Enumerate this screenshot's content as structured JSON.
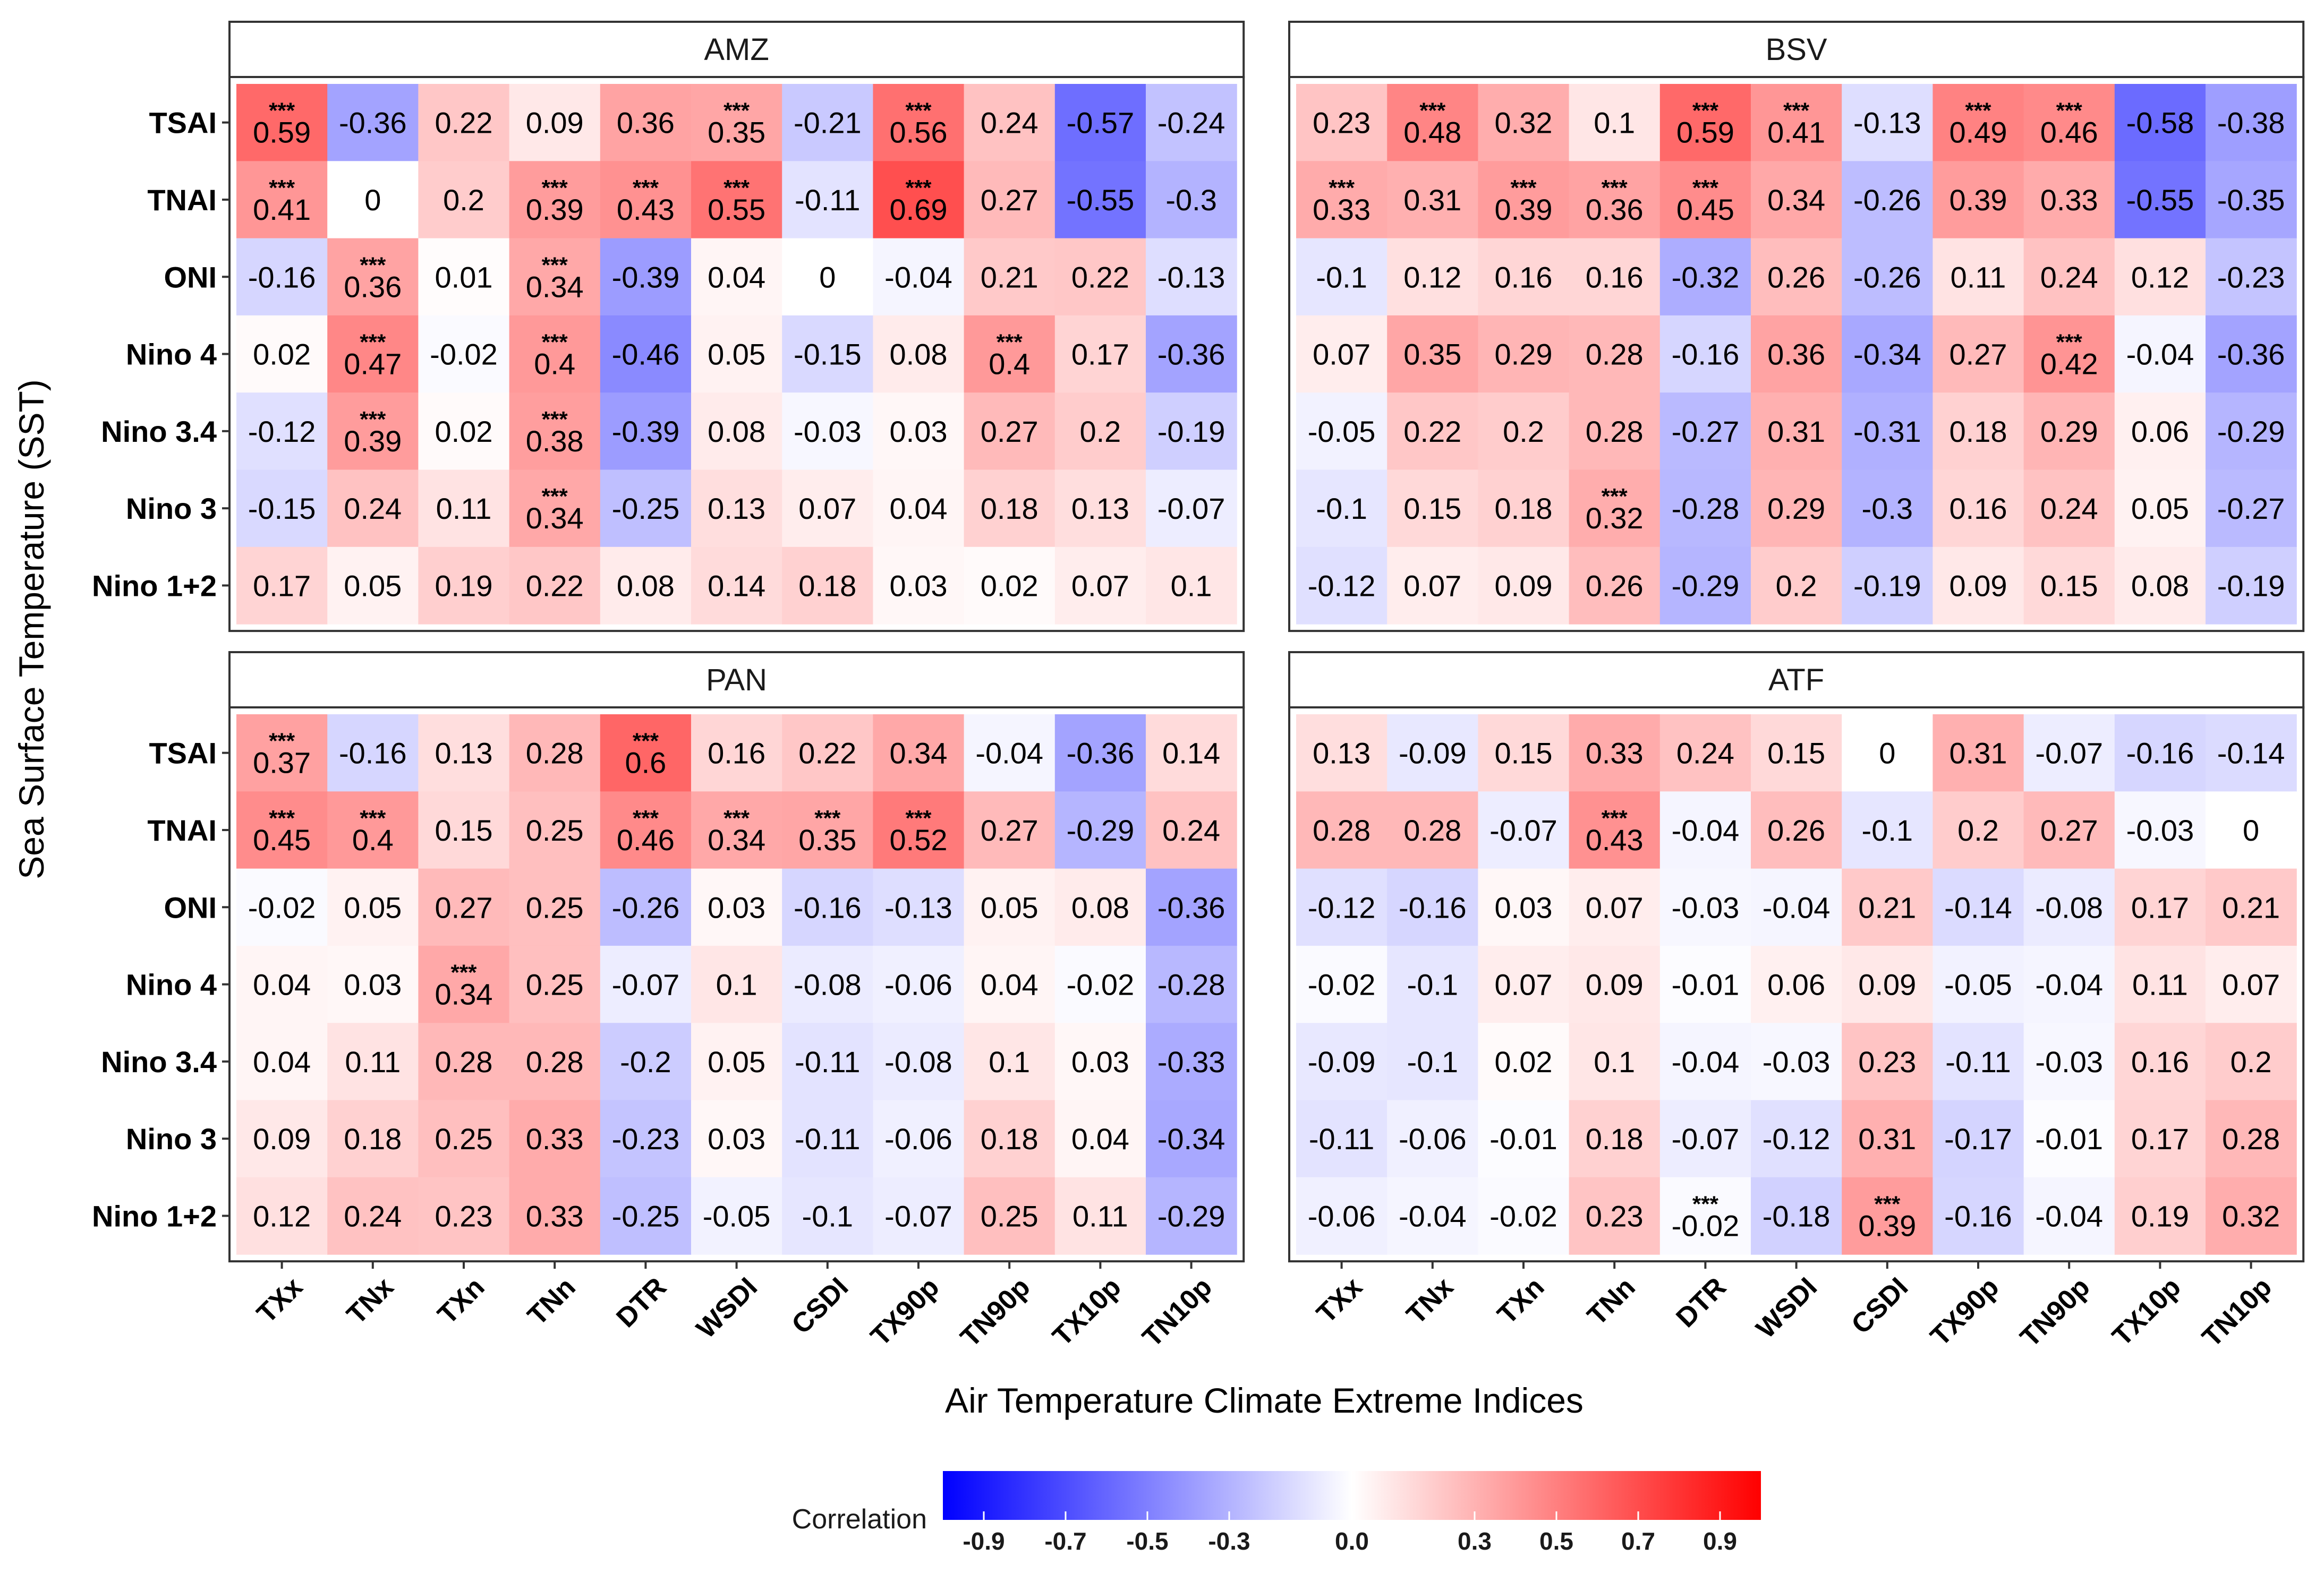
{
  "chart_data": {
    "type": "heatmap",
    "xlabel": "Air Temperature Climate Extreme Indices",
    "ylabel": "Sea Surface Temperature (SST)",
    "columns": [
      "TXx",
      "TNx",
      "TXn",
      "TNn",
      "DTR",
      "WSDI",
      "CSDI",
      "TX90p",
      "TN90p",
      "TX10p",
      "TN10p"
    ],
    "rows": [
      "TSAI",
      "TNAI",
      "ONI",
      "Nino 4",
      "Nino 3.4",
      "Nino 3",
      "Nino 1+2"
    ],
    "significance_marker": "***",
    "color_scale": {
      "title": "Correlation",
      "min": -1.0,
      "max": 1.0,
      "low_color": "#0000ff",
      "mid_color": "#ffffff",
      "high_color": "#ff0000",
      "ticks": [
        "-0.9",
        "-0.7",
        "-0.5",
        "-0.3",
        "0.0",
        "0.3",
        "0.5",
        "0.7",
        "0.9"
      ]
    },
    "panels": [
      {
        "name": "AMZ",
        "values": [
          [
            0.59,
            -0.36,
            0.22,
            0.09,
            0.36,
            0.35,
            -0.21,
            0.56,
            0.24,
            -0.57,
            -0.24
          ],
          [
            0.41,
            0,
            0.2,
            0.39,
            0.43,
            0.55,
            -0.11,
            0.69,
            0.27,
            -0.55,
            -0.3
          ],
          [
            -0.16,
            0.36,
            0.01,
            0.34,
            -0.39,
            0.04,
            0,
            -0.04,
            0.21,
            0.22,
            -0.13
          ],
          [
            0.02,
            0.47,
            -0.02,
            0.4,
            -0.46,
            0.05,
            -0.15,
            0.08,
            0.4,
            0.17,
            -0.36
          ],
          [
            -0.12,
            0.39,
            0.02,
            0.38,
            -0.39,
            0.08,
            -0.03,
            0.03,
            0.27,
            0.2,
            -0.19
          ],
          [
            -0.15,
            0.24,
            0.11,
            0.34,
            -0.25,
            0.13,
            0.07,
            0.04,
            0.18,
            0.13,
            -0.07
          ],
          [
            0.17,
            0.05,
            0.19,
            0.22,
            0.08,
            0.14,
            0.18,
            0.03,
            0.02,
            0.07,
            0.1
          ]
        ],
        "significant": [
          [
            1,
            0,
            0,
            0,
            0,
            1,
            0,
            1,
            0,
            0,
            0
          ],
          [
            1,
            0,
            0,
            1,
            1,
            1,
            0,
            1,
            0,
            0,
            0
          ],
          [
            0,
            1,
            0,
            1,
            0,
            0,
            0,
            0,
            0,
            0,
            0
          ],
          [
            0,
            1,
            0,
            1,
            0,
            0,
            0,
            0,
            1,
            0,
            0
          ],
          [
            0,
            1,
            0,
            1,
            0,
            0,
            0,
            0,
            0,
            0,
            0
          ],
          [
            0,
            0,
            0,
            1,
            0,
            0,
            0,
            0,
            0,
            0,
            0
          ],
          [
            0,
            0,
            0,
            0,
            0,
            0,
            0,
            0,
            0,
            0,
            0
          ]
        ]
      },
      {
        "name": "BSV",
        "values": [
          [
            0.23,
            0.48,
            0.32,
            0.1,
            0.59,
            0.41,
            -0.13,
            0.49,
            0.46,
            -0.58,
            -0.38
          ],
          [
            0.33,
            0.31,
            0.39,
            0.36,
            0.45,
            0.34,
            -0.26,
            0.39,
            0.33,
            -0.55,
            -0.35
          ],
          [
            -0.1,
            0.12,
            0.16,
            0.16,
            -0.32,
            0.26,
            -0.26,
            0.11,
            0.24,
            0.12,
            -0.23
          ],
          [
            0.07,
            0.35,
            0.29,
            0.28,
            -0.16,
            0.36,
            -0.34,
            0.27,
            0.42,
            -0.04,
            -0.36
          ],
          [
            -0.05,
            0.22,
            0.2,
            0.28,
            -0.27,
            0.31,
            -0.31,
            0.18,
            0.29,
            0.06,
            -0.29
          ],
          [
            -0.1,
            0.15,
            0.18,
            0.32,
            -0.28,
            0.29,
            -0.3,
            0.16,
            0.24,
            0.05,
            -0.27
          ],
          [
            -0.12,
            0.07,
            0.09,
            0.26,
            -0.29,
            0.2,
            -0.19,
            0.09,
            0.15,
            0.08,
            -0.19
          ]
        ],
        "significant": [
          [
            0,
            1,
            0,
            0,
            1,
            1,
            0,
            1,
            1,
            0,
            0
          ],
          [
            1,
            0,
            1,
            1,
            1,
            0,
            0,
            0,
            0,
            0,
            0
          ],
          [
            0,
            0,
            0,
            0,
            0,
            0,
            0,
            0,
            0,
            0,
            0
          ],
          [
            0,
            0,
            0,
            0,
            0,
            0,
            0,
            0,
            1,
            0,
            0
          ],
          [
            0,
            0,
            0,
            0,
            0,
            0,
            0,
            0,
            0,
            0,
            0
          ],
          [
            0,
            0,
            0,
            1,
            0,
            0,
            0,
            0,
            0,
            0,
            0
          ],
          [
            0,
            0,
            0,
            0,
            0,
            0,
            0,
            0,
            0,
            0,
            0
          ]
        ]
      },
      {
        "name": "PAN",
        "values": [
          [
            0.37,
            -0.16,
            0.13,
            0.28,
            0.6,
            0.16,
            0.22,
            0.34,
            -0.04,
            -0.36,
            0.14
          ],
          [
            0.45,
            0.4,
            0.15,
            0.25,
            0.46,
            0.34,
            0.35,
            0.52,
            0.27,
            -0.29,
            0.24
          ],
          [
            -0.02,
            0.05,
            0.27,
            0.25,
            -0.26,
            0.03,
            -0.16,
            -0.13,
            0.05,
            0.08,
            -0.36
          ],
          [
            0.04,
            0.03,
            0.34,
            0.25,
            -0.07,
            0.1,
            -0.08,
            -0.06,
            0.04,
            -0.02,
            -0.28
          ],
          [
            0.04,
            0.11,
            0.28,
            0.28,
            -0.2,
            0.05,
            -0.11,
            -0.08,
            0.1,
            0.03,
            -0.33
          ],
          [
            0.09,
            0.18,
            0.25,
            0.33,
            -0.23,
            0.03,
            -0.11,
            -0.06,
            0.18,
            0.04,
            -0.34
          ],
          [
            0.12,
            0.24,
            0.23,
            0.33,
            -0.25,
            -0.05,
            -0.1,
            -0.07,
            0.25,
            0.11,
            -0.29
          ]
        ],
        "significant": [
          [
            1,
            0,
            0,
            0,
            1,
            0,
            0,
            0,
            0,
            0,
            0
          ],
          [
            1,
            1,
            0,
            0,
            1,
            1,
            1,
            1,
            0,
            0,
            0
          ],
          [
            0,
            0,
            0,
            0,
            0,
            0,
            0,
            0,
            0,
            0,
            0
          ],
          [
            0,
            0,
            1,
            0,
            0,
            0,
            0,
            0,
            0,
            0,
            0
          ],
          [
            0,
            0,
            0,
            0,
            0,
            0,
            0,
            0,
            0,
            0,
            0
          ],
          [
            0,
            0,
            0,
            0,
            0,
            0,
            0,
            0,
            0,
            0,
            0
          ],
          [
            0,
            0,
            0,
            0,
            0,
            0,
            0,
            0,
            0,
            0,
            0
          ]
        ]
      },
      {
        "name": "ATF",
        "values": [
          [
            0.13,
            -0.09,
            0.15,
            0.33,
            0.24,
            0.15,
            0,
            0.31,
            -0.07,
            -0.16,
            -0.14
          ],
          [
            0.28,
            0.28,
            -0.07,
            0.43,
            -0.04,
            0.26,
            -0.1,
            0.2,
            0.27,
            -0.03,
            0
          ],
          [
            -0.12,
            -0.16,
            0.03,
            0.07,
            -0.03,
            -0.04,
            0.21,
            -0.14,
            -0.08,
            0.17,
            0.21
          ],
          [
            -0.02,
            -0.1,
            0.07,
            0.09,
            -0.01,
            0.06,
            0.09,
            -0.05,
            -0.04,
            0.11,
            0.07
          ],
          [
            -0.09,
            -0.1,
            0.02,
            0.1,
            -0.04,
            -0.03,
            0.23,
            -0.11,
            -0.03,
            0.16,
            0.2
          ],
          [
            -0.11,
            -0.06,
            -0.01,
            0.18,
            -0.07,
            -0.12,
            0.31,
            -0.17,
            -0.01,
            0.17,
            0.28
          ],
          [
            -0.06,
            -0.04,
            -0.02,
            0.23,
            -0.02,
            -0.18,
            0.39,
            -0.16,
            -0.04,
            0.19,
            0.32
          ]
        ],
        "significant": [
          [
            0,
            0,
            0,
            0,
            0,
            0,
            0,
            0,
            0,
            0,
            0
          ],
          [
            0,
            0,
            0,
            1,
            0,
            0,
            0,
            0,
            0,
            0,
            0
          ],
          [
            0,
            0,
            0,
            0,
            0,
            0,
            0,
            0,
            0,
            0,
            0
          ],
          [
            0,
            0,
            0,
            0,
            0,
            0,
            0,
            0,
            0,
            0,
            0
          ],
          [
            0,
            0,
            0,
            0,
            0,
            0,
            0,
            0,
            0,
            0,
            0
          ],
          [
            0,
            0,
            0,
            0,
            0,
            0,
            0,
            0,
            0,
            0,
            0
          ],
          [
            0,
            0,
            0,
            0,
            1,
            0,
            1,
            0,
            0,
            0,
            0
          ]
        ]
      }
    ]
  }
}
